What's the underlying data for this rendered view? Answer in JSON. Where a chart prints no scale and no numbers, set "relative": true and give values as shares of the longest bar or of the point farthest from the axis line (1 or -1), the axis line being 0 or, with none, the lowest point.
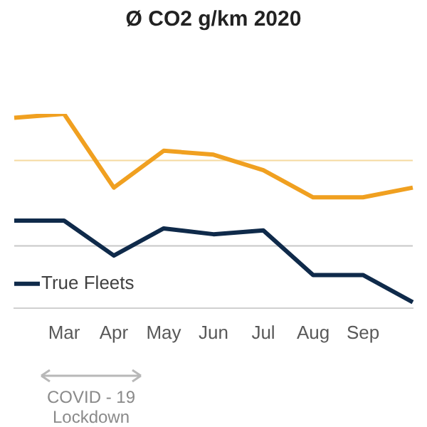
{
  "chart_data": {
    "type": "line",
    "title": "Ø CO2 g/km 2020",
    "relative": true,
    "categories": [
      null,
      "Mar",
      "Apr",
      "May",
      "Jun",
      "Jul",
      "Aug",
      "Sep",
      null
    ],
    "series": [
      {
        "color": "#f0a020",
        "values": [
          0.98,
          1,
          0.62,
          0.81,
          0.79,
          0.71,
          0.57,
          0.57,
          0.62
        ]
      },
      {
        "name": "True Fleets",
        "color": "#0f2a4a",
        "values": [
          0.45,
          0.45,
          0.27,
          0.41,
          0.38,
          0.4,
          0.17,
          0.17,
          0.03
        ]
      }
    ],
    "ref_lines": [
      {
        "axis": "y",
        "value": 0.76,
        "color": "#f5d9a0"
      },
      {
        "axis": "y",
        "value": 0.32,
        "color": "#c8c8c8"
      }
    ],
    "legend": "bottom left",
    "grid": false,
    "marker": "none",
    "annotations": [
      "COVID - 19 Lockdown"
    ]
  }
}
